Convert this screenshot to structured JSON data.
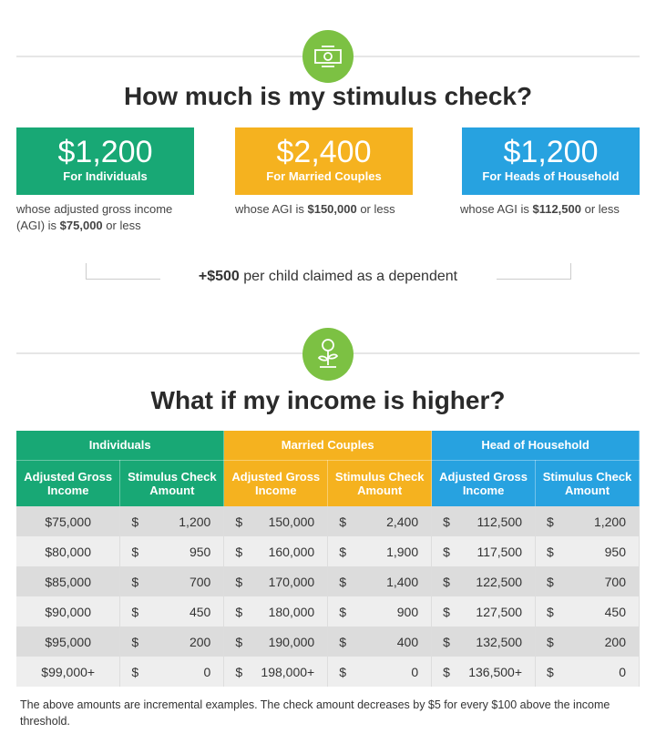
{
  "section1": {
    "icon": "money-cycle-icon",
    "title": "How much is my stimulus check?",
    "boxes": [
      {
        "amount": "$1,200",
        "label": "For Individuals",
        "color": "#18a875",
        "desc_pre": "whose adjusted gross income (AGI) is ",
        "desc_bold": "$75,000",
        "desc_post": " or less"
      },
      {
        "amount": "$2,400",
        "label": "For Married Couples",
        "color": "#f5b21f",
        "desc_pre": "whose AGI is ",
        "desc_bold": "$150,000",
        "desc_post": " or less"
      },
      {
        "amount": "$1,200",
        "label": "For Heads of Household",
        "color": "#27a2e0",
        "desc_pre": "whose AGI is ",
        "desc_bold": "$112,500",
        "desc_post": " or less"
      }
    ],
    "child_bold": "+$500",
    "child_rest": " per child claimed as a dependent"
  },
  "section2": {
    "icon": "money-plant-icon",
    "title": "What if my income is higher?"
  },
  "table": {
    "groups": [
      "Individuals",
      "Married Couples",
      "Head of Household"
    ],
    "subheaders": [
      "Adjusted Gross Income",
      "Stimulus Check Amount"
    ],
    "rows": [
      [
        "$75,000",
        [
          "$",
          "1,200"
        ],
        [
          "$",
          "150,000"
        ],
        [
          "$",
          "2,400"
        ],
        [
          "$",
          "112,500"
        ],
        [
          "$",
          "1,200"
        ]
      ],
      [
        "$80,000",
        [
          "$",
          "950"
        ],
        [
          "$",
          "160,000"
        ],
        [
          "$",
          "1,900"
        ],
        [
          "$",
          "117,500"
        ],
        [
          "$",
          "950"
        ]
      ],
      [
        "$85,000",
        [
          "$",
          "700"
        ],
        [
          "$",
          "170,000"
        ],
        [
          "$",
          "1,400"
        ],
        [
          "$",
          "122,500"
        ],
        [
          "$",
          "700"
        ]
      ],
      [
        "$90,000",
        [
          "$",
          "450"
        ],
        [
          "$",
          "180,000"
        ],
        [
          "$",
          "900"
        ],
        [
          "$",
          "127,500"
        ],
        [
          "$",
          "450"
        ]
      ],
      [
        "$95,000",
        [
          "$",
          "200"
        ],
        [
          "$",
          "190,000"
        ],
        [
          "$",
          "400"
        ],
        [
          "$",
          "132,500"
        ],
        [
          "$",
          "200"
        ]
      ],
      [
        "$99,000+",
        [
          "$",
          "0"
        ],
        [
          "$",
          "198,000+"
        ],
        [
          "$",
          "0"
        ],
        [
          "$",
          "136,500+"
        ],
        [
          "$",
          "0"
        ]
      ]
    ]
  },
  "footnote": "The above amounts are incremental examples. The check amount decreases by $5 for every $100 above the income threshold."
}
